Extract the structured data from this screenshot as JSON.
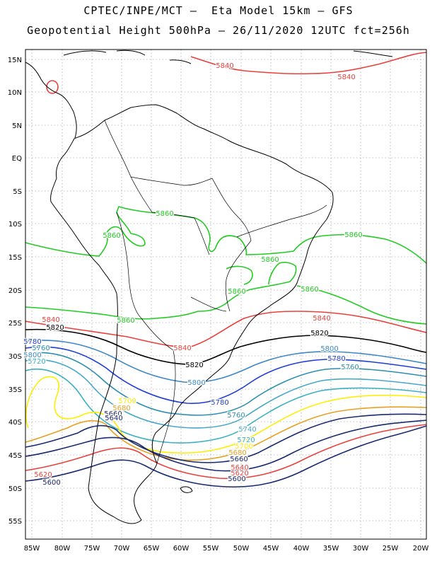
{
  "header": {
    "title": "CPTEC/INPE/MCT –  Eta Model 15km – GFS",
    "subtitle": "Geopotential Height 500hPa – 26/11/2020 12UTC fct=256h"
  },
  "axes": {
    "lat_labels": [
      "15N",
      "10N",
      "5N",
      "EQ",
      "5S",
      "10S",
      "15S",
      "20S",
      "25S",
      "30S",
      "35S",
      "40S",
      "45S",
      "50S",
      "55S"
    ],
    "lon_labels": [
      "85W",
      "80W",
      "75W",
      "70W",
      "65W",
      "60W",
      "55W",
      "50W",
      "45W",
      "40W",
      "35W",
      "30W",
      "25W",
      "20W"
    ]
  },
  "colors": {
    "5860": "#22cc22",
    "5840": "#e8413c",
    "5820": "#000000",
    "5800": "#3f88c5",
    "5780": "#1f3fd0",
    "5760": "#2c8fb0",
    "5740": "#48a8c8",
    "5720": "#3ab0c0",
    "5700": "#ffee00",
    "5680": "#e8a020",
    "5660": "#1a2a70",
    "coast": "#000000",
    "grid": "#888888"
  },
  "contour_labels": [
    {
      "text": "5840",
      "key": "5840"
    },
    {
      "text": "5840",
      "key": "5840"
    },
    {
      "text": "5860",
      "key": "5860"
    },
    {
      "text": "5860",
      "key": "5860"
    },
    {
      "text": "5860",
      "key": "5860"
    },
    {
      "text": "5860",
      "key": "5860"
    },
    {
      "text": "5860",
      "key": "5860"
    },
    {
      "text": "5860",
      "key": "5860"
    },
    {
      "text": "5860",
      "key": "5860"
    },
    {
      "text": "5840",
      "key": "5840"
    },
    {
      "text": "5840",
      "key": "5840"
    },
    {
      "text": "5840",
      "key": "5840"
    },
    {
      "text": "5820",
      "key": "5820"
    },
    {
      "text": "5820",
      "key": "5820"
    },
    {
      "text": "5820",
      "key": "5820"
    },
    {
      "text": "5800",
      "key": "5800"
    },
    {
      "text": "5780",
      "key": "5780"
    },
    {
      "text": "5760",
      "key": "5760"
    },
    {
      "text": "5720",
      "key": "5720"
    },
    {
      "text": "5800",
      "key": "5800"
    },
    {
      "text": "5780",
      "key": "5780"
    },
    {
      "text": "5760",
      "key": "5760"
    },
    {
      "text": "5800",
      "key": "5800"
    },
    {
      "text": "5780",
      "key": "5780"
    },
    {
      "text": "5760",
      "key": "5760"
    },
    {
      "text": "5740",
      "key": "5740"
    },
    {
      "text": "5720",
      "key": "5720"
    },
    {
      "text": "5700",
      "key": "5700"
    },
    {
      "text": "5680",
      "key": "5680"
    },
    {
      "text": "5660",
      "key": "5660"
    },
    {
      "text": "5640",
      "key": "5660"
    },
    {
      "text": "5700",
      "key": "5700"
    },
    {
      "text": "5680",
      "key": "5680"
    },
    {
      "text": "5660",
      "key": "5660"
    },
    {
      "text": "5640",
      "key": "5840"
    },
    {
      "text": "5620",
      "key": "5840"
    },
    {
      "text": "5600",
      "key": "5660"
    },
    {
      "text": "5620",
      "key": "5840"
    },
    {
      "text": "5600",
      "key": "5660"
    }
  ]
}
